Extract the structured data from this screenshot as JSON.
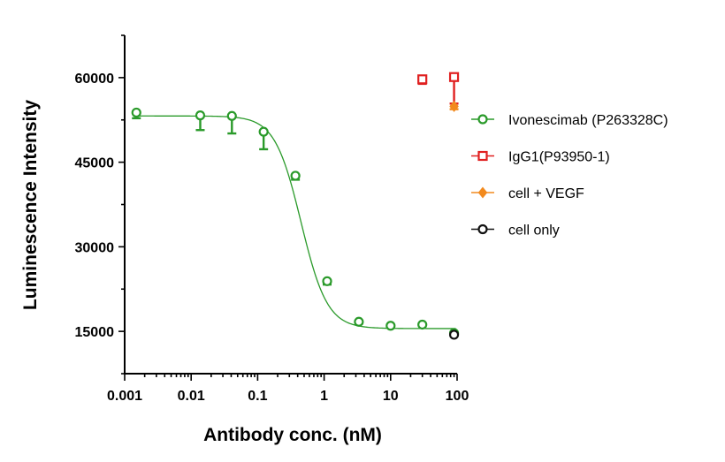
{
  "chart_data": {
    "type": "scatter",
    "xlabel": "Antibody conc. (nM)",
    "ylabel": "Luminescence Intensity",
    "x_scale": "log",
    "xlim": [
      0.001,
      100
    ],
    "ylim": [
      7500,
      67500
    ],
    "x_ticks": [
      0.001,
      0.01,
      0.1,
      1,
      10,
      100
    ],
    "x_tick_labels": [
      "0.001",
      "0.01",
      "0.1",
      "1",
      "10",
      "100"
    ],
    "y_ticks": [
      15000,
      30000,
      45000,
      60000
    ],
    "y_tick_labels": [
      "15000",
      "30000",
      "45000",
      "60000"
    ],
    "grid": false,
    "legend_position": "right",
    "series": [
      {
        "name": "Ivonescimab (P263328C)",
        "color": "#2a9a2a",
        "marker": "circle",
        "x": [
          0.0015,
          0.0137,
          0.041,
          0.123,
          0.37,
          1.11,
          3.33,
          10,
          30,
          90
        ],
        "y": [
          53800,
          53300,
          53200,
          50400,
          42600,
          23900,
          16700,
          16000,
          16200,
          14700
        ],
        "error_lower": [
          1000,
          2600,
          3100,
          3100,
          700,
          600,
          300,
          100,
          100,
          0
        ],
        "fit": {
          "top": 53200,
          "bottom": 15500,
          "ec50": 0.45,
          "hill": 2.2
        }
      },
      {
        "name": "IgG1(P93950-1)",
        "color": "#e02020",
        "marker": "square",
        "x": [
          30,
          90
        ],
        "y": [
          59700,
          60100
        ],
        "error_lower": [
          800,
          4700
        ]
      },
      {
        "name": "cell + VEGF",
        "color": "#f28a1e",
        "marker": "diamond",
        "x": [
          90
        ],
        "y": [
          54900
        ],
        "error_lower": [
          500
        ]
      },
      {
        "name": "cell only",
        "color": "#111111",
        "marker": "circle",
        "x": [
          90
        ],
        "y": [
          14400
        ],
        "error_lower": [
          0
        ]
      }
    ]
  }
}
